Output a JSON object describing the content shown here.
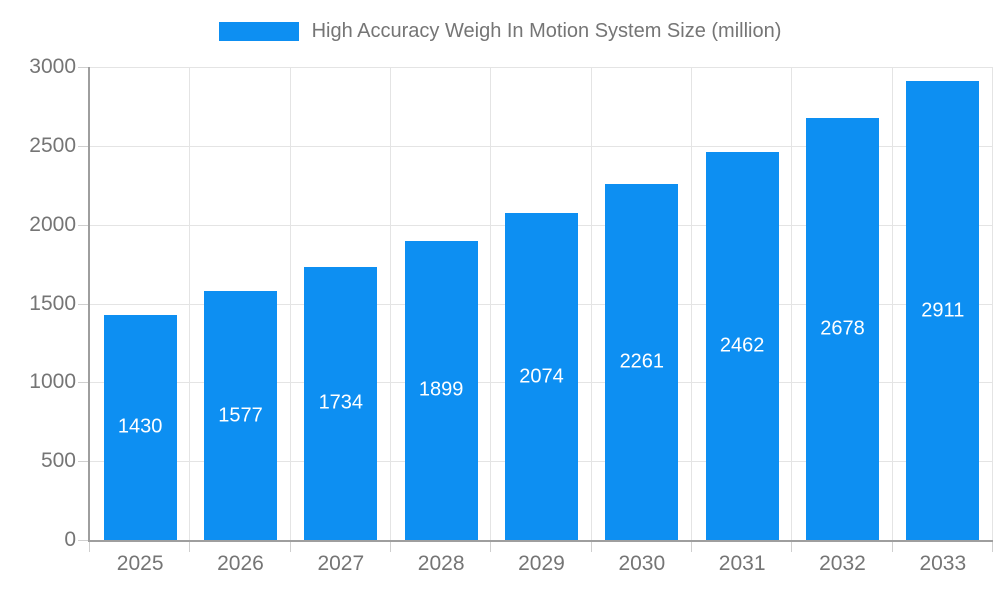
{
  "legend": {
    "swatch_color": "#0d8ff2"
  },
  "chart_data": {
    "type": "bar",
    "title": "High Accuracy Weigh In Motion System Size (million)",
    "categories": [
      "2025",
      "2026",
      "2027",
      "2028",
      "2029",
      "2030",
      "2031",
      "2032",
      "2033"
    ],
    "values": [
      1430,
      1577,
      1734,
      1899,
      2074,
      2261,
      2462,
      2678,
      2911
    ],
    "xlabel": "",
    "ylabel": "",
    "ylim": [
      0,
      3000
    ],
    "yticks": [
      0,
      500,
      1000,
      1500,
      2000,
      2500,
      3000
    ],
    "grid": true,
    "legend_position": "top-center",
    "bar_color": "#0d8ff2",
    "bar_label_color": "#ffffff",
    "axis_text_color": "#757575",
    "axis_line_color": "#9e9e9e",
    "gridline_color": "#e4e4e4",
    "bar_width_fraction": 0.73
  }
}
